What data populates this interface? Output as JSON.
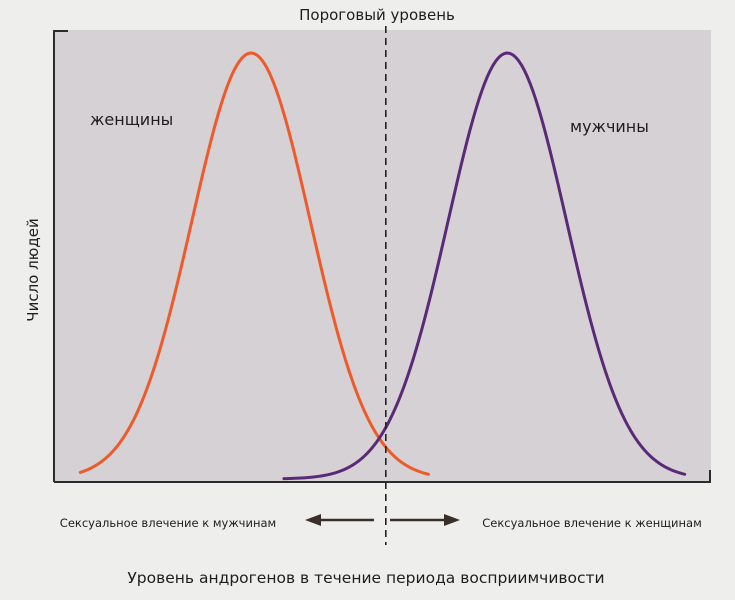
{
  "chart_data": {
    "type": "line",
    "title": "",
    "threshold_label": "Пороговый уровень",
    "xlabel": "Уровень андрогенов в течение периода восприимчивости",
    "ylabel": "Число людей",
    "grid": false,
    "series": [
      {
        "name": "женщины",
        "color": "#ee5a2a",
        "mean": 0.3,
        "sd": 0.09,
        "xmin": 0.04,
        "xmax": 0.57
      },
      {
        "name": "мужчины",
        "color": "#5a2a78",
        "mean": 0.69,
        "sd": 0.09,
        "xmin": 0.35,
        "xmax": 0.96
      }
    ],
    "threshold_x": 0.505,
    "direction_labels": {
      "left": "Сексуальное влечение к мужчинам",
      "right": "Сексуальное влечение к женщинам"
    },
    "colors": {
      "plot_background": "#d6d1d4",
      "axis": "#2b2b2b",
      "threshold_line": "#222222",
      "arrow": "#3a2e2a"
    }
  }
}
